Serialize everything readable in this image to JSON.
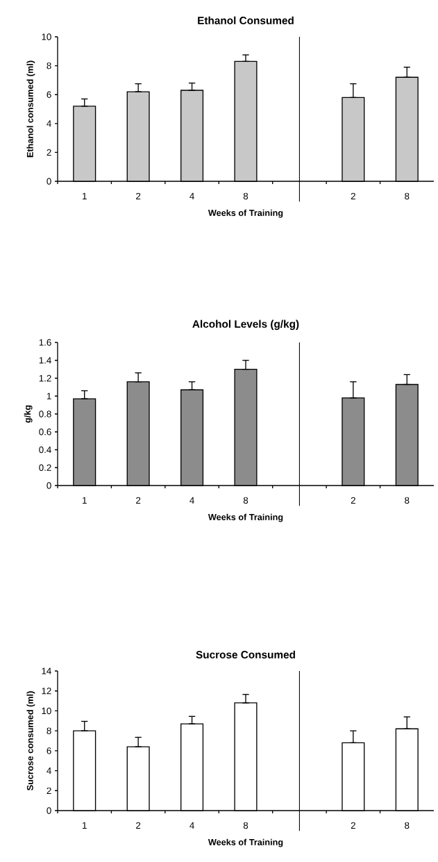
{
  "chart_data": [
    {
      "type": "bar",
      "title": "Ethanol Consumed",
      "xlabel": "Weeks of Training",
      "ylabel": "Ethanol consumed (ml)",
      "categories": [
        "1",
        "2",
        "4",
        "8",
        null,
        "2",
        "8"
      ],
      "values": [
        5.2,
        6.2,
        6.3,
        8.3,
        null,
        5.8,
        7.2
      ],
      "errors": [
        [
          5.2,
          5.7
        ],
        [
          6.2,
          6.75
        ],
        [
          6.3,
          6.8
        ],
        [
          8.3,
          8.75
        ],
        null,
        [
          5.8,
          6.75
        ],
        [
          7.2,
          7.9
        ]
      ],
      "color": "#c8c8c8",
      "ylim": [
        0,
        10
      ],
      "yticks": [
        0,
        2,
        4,
        6,
        8,
        10
      ]
    },
    {
      "type": "bar",
      "title": "Alcohol Levels (g/kg)",
      "xlabel": "Weeks of Training",
      "ylabel": "g/kg",
      "categories": [
        "1",
        "2",
        "4",
        "8",
        null,
        "2",
        "8"
      ],
      "values": [
        0.97,
        1.16,
        1.07,
        1.3,
        null,
        0.98,
        1.13
      ],
      "errors": [
        [
          0.97,
          1.06
        ],
        [
          1.16,
          1.26
        ],
        [
          1.07,
          1.16
        ],
        [
          1.3,
          1.4
        ],
        null,
        [
          0.98,
          1.16
        ],
        [
          1.13,
          1.24
        ]
      ],
      "color": "#8c8c8c",
      "ylim": [
        0,
        1.6
      ],
      "yticks": [
        0,
        0.2,
        0.4,
        0.6,
        0.8,
        1,
        1.2,
        1.4,
        1.6
      ]
    },
    {
      "type": "bar",
      "title": "Sucrose Consumed",
      "xlabel": "Weeks of Training",
      "ylabel": "Sucrose consumed (ml)",
      "categories": [
        "1",
        "2",
        "4",
        "8",
        null,
        "2",
        "8"
      ],
      "values": [
        8.0,
        6.4,
        8.7,
        10.8,
        null,
        6.8,
        8.2
      ],
      "errors": [
        [
          8.0,
          8.95
        ],
        [
          6.4,
          7.35
        ],
        [
          8.7,
          9.45
        ],
        [
          10.8,
          11.65
        ],
        null,
        [
          6.8,
          8.0
        ],
        [
          8.2,
          9.4
        ]
      ],
      "color": "#ffffff",
      "ylim": [
        0,
        14
      ],
      "yticks": [
        0,
        2,
        4,
        6,
        8,
        10,
        12,
        14
      ]
    }
  ]
}
